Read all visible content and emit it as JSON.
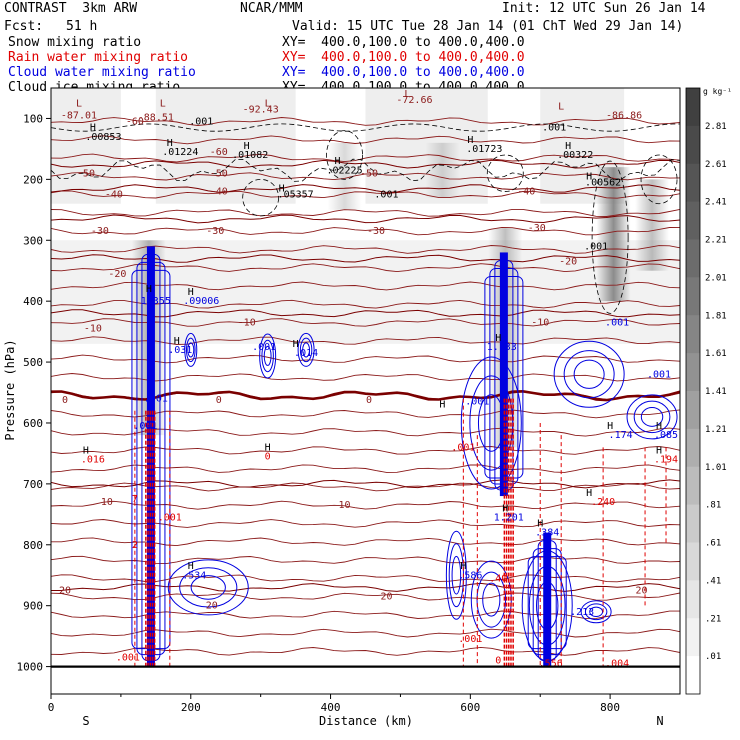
{
  "header": {
    "model": "CONTRAST  3km ARW",
    "center": "NCAR/MMM",
    "init": "Init: 12 UTC Sun 26 Jan 14",
    "fcst_label": "Fcst:",
    "fcst_value": "51 h",
    "valid": "Valid: 15 UTC Tue 28 Jan 14 (01 ChT Wed 29 Jan 14)"
  },
  "legend": [
    {
      "label": "Snow mixing ratio",
      "xy": "",
      "color": "#000000"
    },
    {
      "label": "Rain water mixing ratio",
      "xy": "XY=  400.0,100.0 to 400.0,400.0",
      "color": "#e00000"
    },
    {
      "label": "Cloud water mixing ratio",
      "xy": "XY=  400.0,100.0 to 400.0,400.0",
      "color": "#0000e0"
    },
    {
      "label": "Cloud ice mixing ratio",
      "xy": "XY=  400.0,100.0 to 400.0,400.0",
      "color": "#000000"
    }
  ],
  "snow_xy": "XY=  400.0,100.0 to 400.0,400.0",
  "colorbar": {
    "units": "g kg⁻¹",
    "labels": [
      "2.81",
      "2.61",
      "2.41",
      "2.21",
      "2.01",
      "1.81",
      "1.61",
      "1.41",
      "1.21",
      "1.01",
      ".81",
      ".61",
      ".41",
      ".21",
      ".01"
    ],
    "colors": [
      "#404040",
      "#4a4a4a",
      "#555555",
      "#606060",
      "#6c6c6c",
      "#787878",
      "#858585",
      "#929292",
      "#a0a0a0",
      "#aeaeae",
      "#bcbcbc",
      "#cbcbcb",
      "#d9d9d9",
      "#e6e6e6",
      "#f2f2f2",
      "#ffffff"
    ]
  },
  "chart_data": {
    "type": "cross-section",
    "xlabel": "Distance (km)",
    "ylabel": "Pressure (hPa)",
    "xlim": [
      0,
      900
    ],
    "ylim": [
      1045,
      50
    ],
    "xticks": [
      0,
      200,
      400,
      600,
      800
    ],
    "yticks": [
      100,
      200,
      300,
      400,
      500,
      600,
      700,
      800,
      900,
      1000
    ],
    "end_labels": {
      "left": "S",
      "right": "N"
    },
    "snow_columns": [
      {
        "x": 140,
        "p_top": 300,
        "p_bot": 620,
        "strength": 0.6
      },
      {
        "x": 650,
        "p_top": 280,
        "p_bot": 640,
        "strength": 0.5
      },
      {
        "x": 805,
        "p_top": 180,
        "p_bot": 400,
        "strength": 0.9
      },
      {
        "x": 860,
        "p_top": 200,
        "p_bot": 350,
        "strength": 0.5
      },
      {
        "x": 420,
        "p_top": 140,
        "p_bot": 250,
        "strength": 0.3
      },
      {
        "x": 560,
        "p_top": 140,
        "p_bot": 230,
        "strength": 0.3
      }
    ],
    "temp_contours": [
      {
        "label": "-50",
        "p": 175
      },
      {
        "label": "-40",
        "p": 215
      },
      {
        "label": "-30",
        "p": 265
      },
      {
        "label": "-20",
        "p": 330
      },
      {
        "label": "-10",
        "p": 420
      },
      {
        "label": "0",
        "p": 555
      },
      {
        "label": "10",
        "p": 700
      },
      {
        "label": "20",
        "p": 870
      }
    ],
    "temp_labels": [
      {
        "text": "-87.01",
        "x": 40,
        "p": 100
      },
      {
        "text": "-88.51",
        "x": 150,
        "p": 103
      },
      {
        "text": "-92.43",
        "x": 300,
        "p": 90
      },
      {
        "text": "-72.66",
        "x": 520,
        "p": 75
      },
      {
        "text": "-86.86",
        "x": 820,
        "p": 100
      },
      {
        "text": "-60",
        "x": 120,
        "p": 110
      },
      {
        "text": "-60",
        "x": 240,
        "p": 160
      },
      {
        "text": "-50",
        "x": 50,
        "p": 195
      },
      {
        "text": "-50",
        "x": 240,
        "p": 195
      },
      {
        "text": "-50",
        "x": 455,
        "p": 195
      },
      {
        "text": "-40",
        "x": 90,
        "p": 230
      },
      {
        "text": "-40",
        "x": 240,
        "p": 225
      },
      {
        "text": "-40",
        "x": 680,
        "p": 225
      },
      {
        "text": "-30",
        "x": 70,
        "p": 290
      },
      {
        "text": "-30",
        "x": 235,
        "p": 290
      },
      {
        "text": "-30",
        "x": 465,
        "p": 290
      },
      {
        "text": "-30",
        "x": 695,
        "p": 285
      },
      {
        "text": "-20",
        "x": 95,
        "p": 360
      },
      {
        "text": "-20",
        "x": 740,
        "p": 340
      },
      {
        "text": "-10",
        "x": 60,
        "p": 450
      },
      {
        "text": "-10",
        "x": 280,
        "p": 440
      },
      {
        "text": "-10",
        "x": 700,
        "p": 440
      },
      {
        "text": "0",
        "x": 20,
        "p": 567
      },
      {
        "text": "0",
        "x": 240,
        "p": 567
      },
      {
        "text": "0",
        "x": 455,
        "p": 567
      },
      {
        "text": "10",
        "x": 80,
        "p": 735
      },
      {
        "text": "10",
        "x": 420,
        "p": 740
      },
      {
        "text": "20",
        "x": 20,
        "p": 880
      },
      {
        "text": "20",
        "x": 230,
        "p": 905
      },
      {
        "text": "20",
        "x": 480,
        "p": 890
      },
      {
        "text": "20",
        "x": 845,
        "p": 880
      }
    ],
    "ice_maxima": [
      {
        "text": ".00853",
        "x": 75,
        "p": 135
      },
      {
        "text": ".01224",
        "x": 185,
        "p": 160
      },
      {
        "text": ".01082",
        "x": 285,
        "p": 165
      },
      {
        "text": ".02225",
        "x": 420,
        "p": 190
      },
      {
        "text": ".05357",
        "x": 350,
        "p": 230
      },
      {
        "text": ".01723",
        "x": 620,
        "p": 155
      },
      {
        "text": ".00322",
        "x": 750,
        "p": 165
      },
      {
        "text": ".00562",
        "x": 790,
        "p": 210
      },
      {
        "text": ".001",
        "x": 215,
        "p": 110
      },
      {
        "text": ".001",
        "x": 720,
        "p": 120
      },
      {
        "text": ".001",
        "x": 480,
        "p": 230
      },
      {
        "text": ".001",
        "x": 780,
        "p": 315
      }
    ],
    "cloud_maxima": [
      {
        "text": "1.355",
        "x": 150,
        "p": 405
      },
      {
        "text": ".09006",
        "x": 215,
        "p": 405
      },
      {
        "text": ".031",
        "x": 185,
        "p": 485
      },
      {
        "text": ".001",
        "x": 305,
        "p": 480
      },
      {
        "text": ".014",
        "x": 365,
        "p": 490
      },
      {
        "text": "1.133",
        "x": 645,
        "p": 480
      },
      {
        "text": ".001",
        "x": 610,
        "p": 570
      },
      {
        "text": ".001",
        "x": 810,
        "p": 440
      },
      {
        "text": ".001",
        "x": 870,
        "p": 525
      },
      {
        "text": ".174",
        "x": 815,
        "p": 625
      },
      {
        "text": ".085",
        "x": 880,
        "p": 625
      },
      {
        "text": "1.201",
        "x": 655,
        "p": 760
      },
      {
        "text": ".384",
        "x": 710,
        "p": 785
      },
      {
        "text": ".586",
        "x": 600,
        "p": 855
      },
      {
        "text": ".534",
        "x": 205,
        "p": 855
      },
      {
        "text": ".001",
        "x": 150,
        "p": 565
      },
      {
        "text": ".001",
        "x": 135,
        "p": 610
      },
      {
        "text": ".213",
        "x": 760,
        "p": 915
      }
    ],
    "rain_maxima": [
      {
        "text": ".016",
        "x": 60,
        "p": 665
      },
      {
        "text": "0",
        "x": 310,
        "p": 660
      },
      {
        "text": ".001",
        "x": 590,
        "p": 645
      },
      {
        "text": ".194",
        "x": 880,
        "p": 665
      },
      {
        "text": ".240",
        "x": 790,
        "p": 735
      },
      {
        "text": ".001",
        "x": 170,
        "p": 760
      },
      {
        "text": ".001",
        "x": 110,
        "p": 990
      },
      {
        "text": ".004",
        "x": 810,
        "p": 1000
      },
      {
        "text": ".556",
        "x": 715,
        "p": 1000
      },
      {
        "text": "0",
        "x": 640,
        "p": 995
      },
      {
        "text": ".001",
        "x": 600,
        "p": 960
      },
      {
        "text": "2",
        "x": 120,
        "p": 805
      },
      {
        "text": ".40",
        "x": 640,
        "p": 860
      },
      {
        "text": "7",
        "x": 120,
        "p": 730
      }
    ],
    "cloud_cores": [
      {
        "x": 143,
        "p_top": 310,
        "p_bot": 1000
      },
      {
        "x": 648,
        "p_top": 320,
        "p_bot": 720
      },
      {
        "x": 710,
        "p_top": 780,
        "p_bot": 1000
      }
    ],
    "rain_cores": [
      {
        "x": 142,
        "p_top": 580,
        "p_bot": 1000
      },
      {
        "x": 655,
        "p_top": 560,
        "p_bot": 1000
      }
    ],
    "L_marks": [
      {
        "x": 40,
        "p": 80
      },
      {
        "x": 160,
        "p": 80
      },
      {
        "x": 310,
        "p": 80
      },
      {
        "x": 510,
        "p": 65
      },
      {
        "x": 730,
        "p": 85
      }
    ],
    "H_marks": [
      {
        "x": 60,
        "p": 120
      },
      {
        "x": 170,
        "p": 145
      },
      {
        "x": 280,
        "p": 150
      },
      {
        "x": 410,
        "p": 175
      },
      {
        "x": 330,
        "p": 220
      },
      {
        "x": 600,
        "p": 140
      },
      {
        "x": 740,
        "p": 150
      },
      {
        "x": 770,
        "p": 200
      },
      {
        "x": 140,
        "p": 385
      },
      {
        "x": 200,
        "p": 390
      },
      {
        "x": 180,
        "p": 470
      },
      {
        "x": 350,
        "p": 475
      },
      {
        "x": 640,
        "p": 465
      },
      {
        "x": 560,
        "p": 575
      },
      {
        "x": 800,
        "p": 610
      },
      {
        "x": 870,
        "p": 610
      },
      {
        "x": 50,
        "p": 650
      },
      {
        "x": 310,
        "p": 645
      },
      {
        "x": 770,
        "p": 720
      },
      {
        "x": 870,
        "p": 650
      },
      {
        "x": 650,
        "p": 745
      },
      {
        "x": 700,
        "p": 770
      },
      {
        "x": 590,
        "p": 840
      },
      {
        "x": 200,
        "p": 840
      }
    ]
  }
}
